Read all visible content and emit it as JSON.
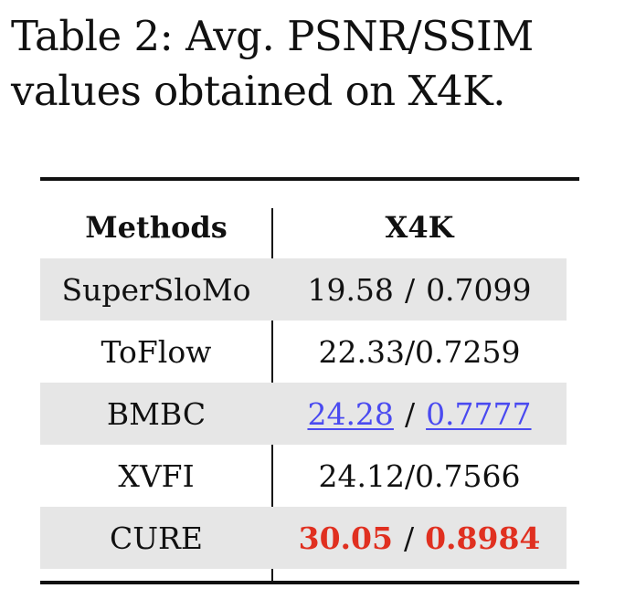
{
  "caption": {
    "line1": "Table 2: Avg. PSNR/SSIM",
    "line2": "values obtained on X4K."
  },
  "table": {
    "headers": {
      "method": "Methods",
      "dataset": "X4K"
    },
    "rows": [
      {
        "method": "SuperSloMo",
        "psnr": "19.58",
        "sep": "/",
        "ssim": "0.7099"
      },
      {
        "method": "ToFlow",
        "value": "22.33/0.7259"
      },
      {
        "method": "BMBC",
        "psnr": "24.28",
        "sep": "/",
        "ssim": "0.7777"
      },
      {
        "method": "XVFI",
        "value": "24.12/0.7566"
      },
      {
        "method": "CURE",
        "psnr": "30.05",
        "sep": "/",
        "ssim": "0.8984"
      }
    ]
  },
  "colors": {
    "best": "#e03020",
    "second_best": "#4a4af0",
    "row_shade": "#e6e6e6"
  }
}
